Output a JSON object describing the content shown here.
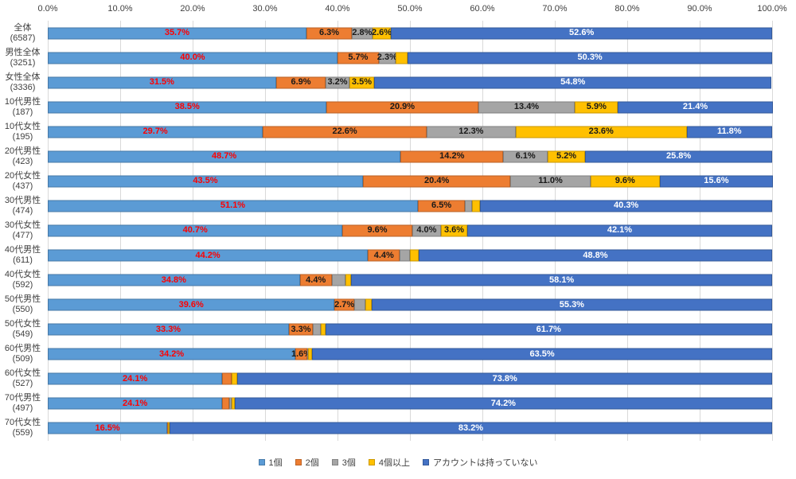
{
  "chart_data": {
    "type": "bar",
    "orientation": "horizontal",
    "stacked": true,
    "unit": "%",
    "x_axis": {
      "min": 0,
      "max": 100,
      "tick_step": 10,
      "tick_labels": [
        "0.0%",
        "10.0%",
        "20.0%",
        "30.0%",
        "40.0%",
        "50.0%",
        "60.0%",
        "70.0%",
        "80.0%",
        "90.0%",
        "100.0%"
      ],
      "grid": true,
      "grid_color": "#D9D9D9"
    },
    "categories": [
      {
        "label": "全体",
        "n": "(6587)"
      },
      {
        "label": "男性全体",
        "n": "(3251)"
      },
      {
        "label": "女性全体",
        "n": "(3336)"
      },
      {
        "label": "10代男性",
        "n": "(187)"
      },
      {
        "label": "10代女性",
        "n": "(195)"
      },
      {
        "label": "20代男性",
        "n": "(423)"
      },
      {
        "label": "20代女性",
        "n": "(437)"
      },
      {
        "label": "30代男性",
        "n": "(474)"
      },
      {
        "label": "30代女性",
        "n": "(477)"
      },
      {
        "label": "40代男性",
        "n": "(611)"
      },
      {
        "label": "40代女性",
        "n": "(592)"
      },
      {
        "label": "50代男性",
        "n": "(550)"
      },
      {
        "label": "50代女性",
        "n": "(549)"
      },
      {
        "label": "60代男性",
        "n": "(509)"
      },
      {
        "label": "60代女性",
        "n": "(527)"
      },
      {
        "label": "70代男性",
        "n": "(497)"
      },
      {
        "label": "70代女性",
        "n": "(559)"
      }
    ],
    "series": [
      {
        "name": "1個",
        "color": "#5B9BD5",
        "label_color": "#FF0000",
        "values": [
          35.7,
          40.0,
          31.5,
          38.5,
          29.7,
          48.7,
          43.5,
          51.1,
          40.7,
          44.2,
          34.8,
          39.6,
          33.3,
          34.2,
          24.1,
          24.1,
          16.5
        ],
        "labels": [
          "35.7%",
          "40.0%",
          "31.5%",
          "38.5%",
          "29.7%",
          "48.7%",
          "43.5%",
          "51.1%",
          "40.7%",
          "44.2%",
          "34.8%",
          "39.6%",
          "33.3%",
          "34.2%",
          "24.1%",
          "24.1%",
          "16.5%"
        ]
      },
      {
        "name": "2個",
        "color": "#ED7D31",
        "label_color": "#1A1A1A",
        "values": [
          6.3,
          5.7,
          6.9,
          20.9,
          22.6,
          14.2,
          20.4,
          6.5,
          9.6,
          4.4,
          4.4,
          2.7,
          3.3,
          1.6,
          1.3,
          1.0,
          0.1
        ],
        "labels": [
          "6.3%",
          "5.7%",
          "6.9%",
          "20.9%",
          "22.6%",
          "14.2%",
          "20.4%",
          "6.5%",
          "9.6%",
          "4.4%",
          "4.4%",
          "2.7%",
          "3.3%",
          "1.6%",
          "",
          "",
          ""
        ]
      },
      {
        "name": "3個",
        "color": "#A5A5A5",
        "label_color": "#1A1A1A",
        "values": [
          2.8,
          2.3,
          3.2,
          13.4,
          12.3,
          6.1,
          11.0,
          1.0,
          4.0,
          1.4,
          1.9,
          1.5,
          1.1,
          0.1,
          0.0,
          0.3,
          0.0
        ],
        "labels": [
          "2.8%",
          "2.3%",
          "3.2%",
          "13.4%",
          "12.3%",
          "6.1%",
          "11.0%",
          "",
          "4.0%",
          "",
          "",
          "",
          "",
          "",
          "",
          "",
          ""
        ]
      },
      {
        "name": "4個以上",
        "color": "#FFC000",
        "label_color": "#1A1A1A",
        "values": [
          2.6,
          1.7,
          3.5,
          5.9,
          23.6,
          5.2,
          9.6,
          1.1,
          3.6,
          1.2,
          0.8,
          0.9,
          0.6,
          0.6,
          0.8,
          0.4,
          0.2
        ],
        "labels": [
          "2.6%",
          "",
          "3.5%",
          "5.9%",
          "23.6%",
          "5.2%",
          "9.6%",
          "",
          "3.6%",
          "",
          "",
          "",
          "",
          "",
          "",
          "",
          ""
        ]
      },
      {
        "name": "アカウントは持っていない",
        "color": "#4472C4",
        "label_color": "#FFFFFF",
        "values": [
          52.6,
          50.3,
          54.8,
          21.4,
          11.8,
          25.8,
          15.6,
          40.3,
          42.1,
          48.8,
          58.1,
          55.3,
          61.7,
          63.5,
          73.8,
          74.2,
          83.2
        ],
        "labels": [
          "52.6%",
          "50.3%",
          "54.8%",
          "21.4%",
          "11.8%",
          "25.8%",
          "15.6%",
          "40.3%",
          "42.1%",
          "48.8%",
          "58.1%",
          "55.3%",
          "61.7%",
          "63.5%",
          "73.8%",
          "74.2%",
          "83.2%"
        ]
      }
    ],
    "legend": {
      "position": "bottom",
      "items": [
        "1個",
        "2個",
        "3個",
        "4個以上",
        "アカウントは持っていない"
      ]
    }
  }
}
